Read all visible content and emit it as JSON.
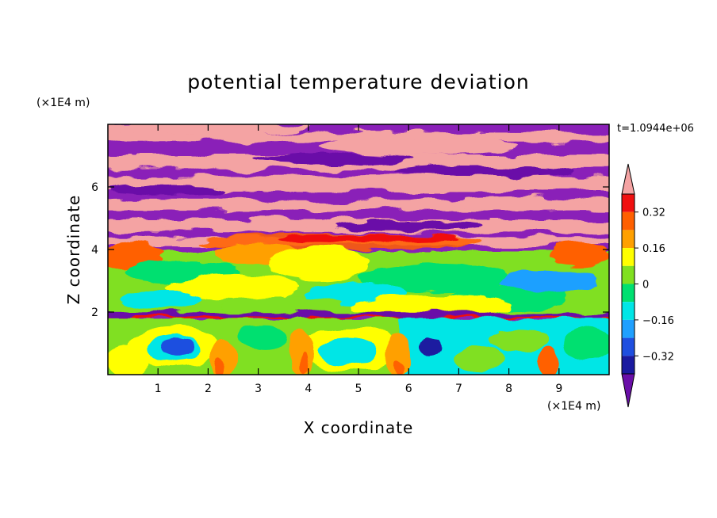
{
  "chart_data": {
    "type": "heatmap",
    "title": "potential temperature deviation",
    "xlabel": "X coordinate",
    "ylabel": "Z coordinate",
    "x_unit": "(×1E4 m)",
    "y_unit": "(×1E4 m)",
    "time_label": "t=1.0944e+06",
    "xlim": [
      0,
      10
    ],
    "ylim": [
      0,
      8
    ],
    "x_ticks": [
      1,
      2,
      3,
      4,
      5,
      6,
      7,
      8,
      9
    ],
    "y_ticks": [
      2,
      4,
      6
    ],
    "x_tick_labels": [
      "1",
      "2",
      "3",
      "4",
      "5",
      "6",
      "7",
      "8",
      "9"
    ],
    "y_tick_labels": [
      "2",
      "4",
      "6"
    ],
    "colorbar": {
      "tick_labels": [
        "0.32",
        "0.16",
        "0",
        "−0.16",
        "−0.32"
      ],
      "tick_values": [
        0.32,
        0.16,
        0,
        -0.16,
        -0.32
      ],
      "levels": [
        -0.4,
        -0.32,
        -0.24,
        -0.16,
        -0.08,
        0,
        0.08,
        0.16,
        0.24,
        0.32,
        0.4
      ],
      "colors": [
        "#6a0fa8",
        "#1a1aa0",
        "#1f4fe0",
        "#1fa0ff",
        "#00e6e6",
        "#00e070",
        "#80e020",
        "#ffff00",
        "#ffa000",
        "#ff6000",
        "#f01010",
        "#f4a3a3"
      ],
      "extend": "both"
    },
    "layers": [
      {
        "z": [
          0.0,
          1.8
        ],
        "description_values": "near-surface convective eddies, values mostly -0.16 to 0.24"
      },
      {
        "z": [
          1.8,
          3.9
        ],
        "description_values": "mixed layer, values mostly -0.08 to 0.16"
      },
      {
        "z": [
          3.9,
          8.0
        ],
        "description_values": "alternating bands of < -0.4 and > 0.4"
      }
    ]
  }
}
